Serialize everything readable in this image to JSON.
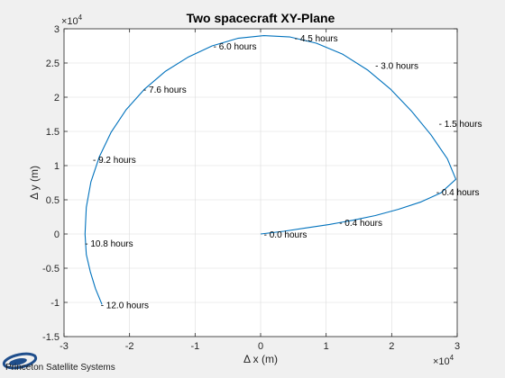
{
  "chart_data": {
    "type": "line",
    "title": "Two spacecraft XY-Plane",
    "xlabel": "Δ x (m)",
    "ylabel": "Δ y (m)",
    "x_exponent_label": "×10",
    "x_exponent": "4",
    "y_exponent_label": "×10",
    "y_exponent": "4",
    "xlim": [
      -3,
      3
    ],
    "ylim": [
      -1.5,
      3
    ],
    "x_ticks": [
      -3,
      -2,
      -1,
      0,
      1,
      2,
      3
    ],
    "x_tick_labels": [
      "-3",
      "-2",
      "-1",
      "0",
      "1",
      "2",
      "3"
    ],
    "y_ticks": [
      -1.5,
      -1,
      -0.5,
      0,
      0.5,
      1,
      1.5,
      2,
      2.5,
      3
    ],
    "y_tick_labels": [
      "-1.5",
      "-1",
      "-0.5",
      "0",
      "0.5",
      "1",
      "1.5",
      "2",
      "2.5",
      "3"
    ],
    "grid": true,
    "line_color": "#0072bd",
    "series": [
      {
        "x": [
          0.0,
          0.35,
          0.7,
          1.05,
          1.4,
          1.75,
          2.1,
          2.45,
          2.75,
          2.98,
          2.85,
          2.6,
          2.3,
          1.98,
          1.63,
          1.25,
          0.85,
          0.45,
          0.05,
          -0.35,
          -0.74,
          -1.1,
          -1.45,
          -1.77,
          -2.05,
          -2.28,
          -2.46,
          -2.59,
          -2.66,
          -2.68,
          -2.66,
          -2.6,
          -2.52,
          -2.42
        ],
        "y": [
          0.0,
          0.04,
          0.09,
          0.14,
          0.2,
          0.27,
          0.36,
          0.47,
          0.6,
          0.8,
          1.1,
          1.45,
          1.8,
          2.12,
          2.4,
          2.63,
          2.79,
          2.88,
          2.9,
          2.86,
          2.75,
          2.59,
          2.38,
          2.12,
          1.82,
          1.49,
          1.13,
          0.76,
          0.39,
          0.0,
          -0.3,
          -0.55,
          -0.8,
          -1.03
        ]
      }
    ],
    "annotations": [
      {
        "text": "0.0 hours",
        "x": 0.05,
        "y": 0.0
      },
      {
        "text": "0.4 hours",
        "x": 1.2,
        "y": 0.17
      },
      {
        "text": "0.4 hours",
        "x": 2.68,
        "y": 0.62
      },
      {
        "text": "1.5 hours",
        "x": 2.72,
        "y": 1.62
      },
      {
        "text": "3.0 hours",
        "x": 1.75,
        "y": 2.47
      },
      {
        "text": "4.5 hours",
        "x": 0.52,
        "y": 2.87
      },
      {
        "text": "6.0 hours",
        "x": -0.72,
        "y": 2.75
      },
      {
        "text": "7.6 hours",
        "x": -1.79,
        "y": 2.12
      },
      {
        "text": "9.2 hours",
        "x": -2.56,
        "y": 1.09
      },
      {
        "text": "10.8 hours",
        "x": -2.68,
        "y": -0.13
      },
      {
        "text": "12.0 hours",
        "x": -2.44,
        "y": -1.03
      }
    ]
  },
  "logo": {
    "text": "Princeton Satellite Systems",
    "accent": "#1f4e8c"
  }
}
